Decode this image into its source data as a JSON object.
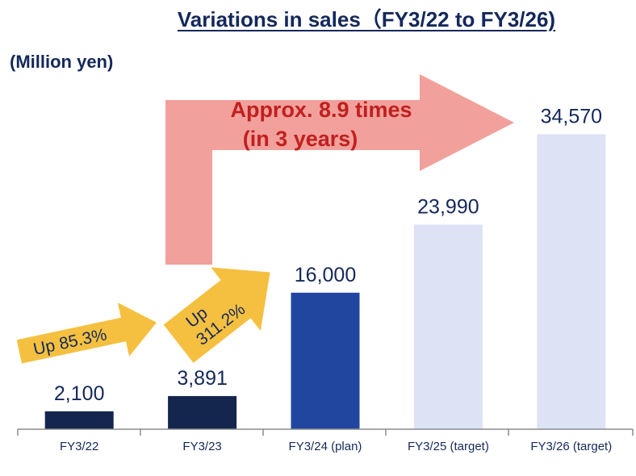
{
  "chart_data": {
    "type": "bar",
    "title": "Variations in sales（FY3/22 to FY3/26)",
    "unit_label": "(Million yen)",
    "xlabel": "",
    "ylabel": "",
    "categories": [
      "FY3/22",
      "FY3/23",
      "FY3/24 (plan)",
      "FY3/25 (target)",
      "FY3/26 (target)"
    ],
    "values": [
      2100,
      3891,
      16000,
      23990,
      34570
    ],
    "value_labels": [
      "2,100",
      "3,891",
      "16,000",
      "23,990",
      "34,570"
    ],
    "ylim": [
      0,
      40000
    ],
    "grid": false,
    "legend": "none",
    "bar_colors": [
      "#14264e",
      "#14264e",
      "#2146a0",
      "#dde3f5",
      "#dde3f5"
    ],
    "annotations": {
      "big_arrow_line1": "Approx. 8.9 times",
      "big_arrow_line2": "(in 3 years)",
      "arrow1_label": "Up 85.3%",
      "arrow2_line1": "Up",
      "arrow2_line2": "311.2%"
    },
    "colors": {
      "big_arrow": "#f2a09c",
      "big_arrow_text": "#c0201e",
      "small_arrow": "#f5c040",
      "text": "#14285a"
    }
  }
}
